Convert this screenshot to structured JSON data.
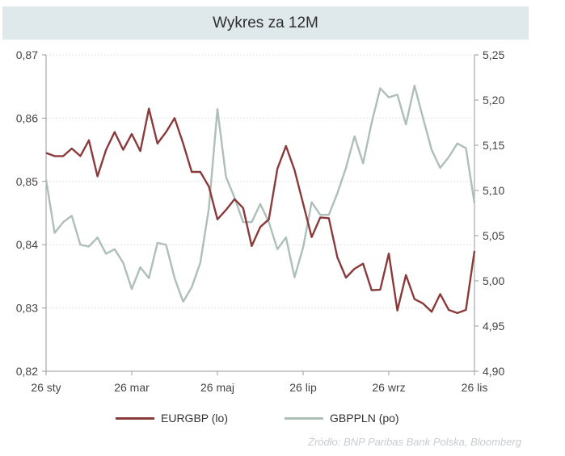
{
  "title": "Wykres za 12M",
  "source": "Źródło:  BNP Paribas Bank Polska, Bloomberg",
  "colors": {
    "eurgbp": "#8b3a3a",
    "gbppln": "#aebfb8",
    "axis": "#9a9a9a",
    "grid": "#e4e4e4",
    "title_bg": "#dfe8ea"
  },
  "chart_data": {
    "type": "line",
    "title": "Wykres za 12M",
    "x_labels": [
      "26 sty",
      "26 mar",
      "26 maj",
      "26 lip",
      "26 wrz",
      "26 lis"
    ],
    "x_label_index": [
      0,
      10,
      20,
      30,
      40,
      50
    ],
    "left_axis": {
      "ylim": [
        0.82,
        0.87
      ],
      "ticks": [
        "0,82",
        "0,83",
        "0,84",
        "0,85",
        "0,86",
        "0,87"
      ]
    },
    "right_axis": {
      "ylim": [
        4.9,
        5.25
      ],
      "ticks": [
        "4,90",
        "4,95",
        "5,00",
        "5,05",
        "5,10",
        "5,15",
        "5,20",
        "5,25"
      ]
    },
    "grid": true,
    "legend_position": "bottom",
    "series": [
      {
        "name": "EURGBP (lo)",
        "axis": "left",
        "values": [
          0.8545,
          0.854,
          0.854,
          0.8552,
          0.854,
          0.8565,
          0.8508,
          0.855,
          0.8578,
          0.855,
          0.8575,
          0.8548,
          0.8615,
          0.856,
          0.8578,
          0.86,
          0.856,
          0.8515,
          0.8515,
          0.8492,
          0.844,
          0.8455,
          0.8472,
          0.8458,
          0.8398,
          0.8428,
          0.844,
          0.852,
          0.8556,
          0.8518,
          0.8465,
          0.8412,
          0.8443,
          0.8442,
          0.838,
          0.8348,
          0.8362,
          0.837,
          0.8328,
          0.8329,
          0.8386,
          0.8296,
          0.8352,
          0.8314,
          0.8307,
          0.8294,
          0.8322,
          0.8297,
          0.8292,
          0.8297,
          0.839
        ]
      },
      {
        "name": "GBPPLN (po)",
        "axis": "right",
        "values": [
          5.112,
          5.053,
          5.065,
          5.072,
          5.04,
          5.038,
          5.048,
          5.03,
          5.035,
          5.02,
          4.991,
          5.015,
          5.003,
          5.042,
          5.04,
          5.003,
          4.977,
          4.993,
          5.02,
          5.08,
          5.19,
          5.115,
          5.092,
          5.065,
          5.065,
          5.085,
          5.065,
          5.035,
          5.048,
          5.004,
          5.037,
          5.087,
          5.073,
          5.073,
          5.097,
          5.125,
          5.16,
          5.13,
          5.175,
          5.213,
          5.203,
          5.206,
          5.173,
          5.216,
          5.18,
          5.145,
          5.125,
          5.137,
          5.152,
          5.147,
          5.086
        ]
      }
    ]
  }
}
